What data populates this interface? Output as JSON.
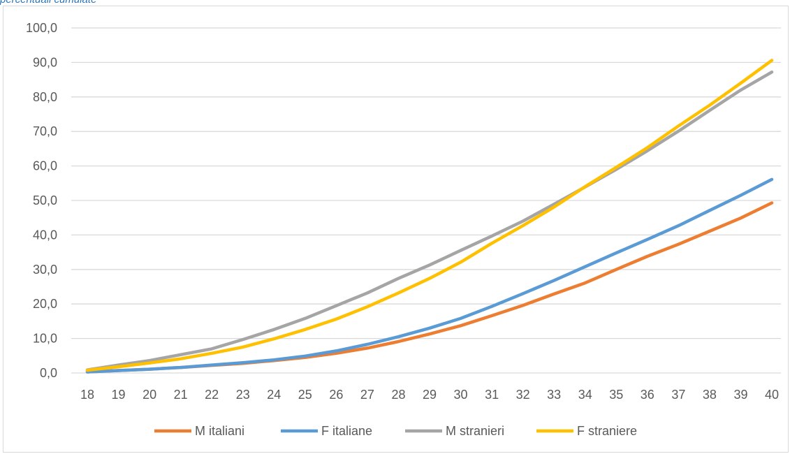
{
  "caption": "percentuali cumulate",
  "chart_data": {
    "type": "line",
    "title": "",
    "xlabel": "",
    "ylabel": "",
    "categories": [
      "18",
      "19",
      "20",
      "21",
      "22",
      "23",
      "24",
      "25",
      "26",
      "27",
      "28",
      "29",
      "30",
      "31",
      "32",
      "33",
      "34",
      "35",
      "36",
      "37",
      "38",
      "39",
      "40"
    ],
    "ylim": [
      0,
      100
    ],
    "yticks": [
      "0,0",
      "10,0",
      "20,0",
      "30,0",
      "40,0",
      "50,0",
      "60,0",
      "70,0",
      "80,0",
      "90,0",
      "100,0"
    ],
    "grid": true,
    "legend_position": "bottom",
    "series": [
      {
        "name": "M italiani",
        "color": "#ed7d31",
        "values": [
          0.3,
          0.7,
          1.1,
          1.6,
          2.2,
          2.8,
          3.6,
          4.5,
          5.7,
          7.2,
          9.1,
          11.3,
          13.7,
          16.6,
          19.6,
          22.9,
          26.1,
          30.0,
          33.8,
          37.3,
          41.1,
          44.9,
          49.3
        ]
      },
      {
        "name": "F italiane",
        "color": "#5b9bd5",
        "values": [
          0.3,
          0.7,
          1.1,
          1.6,
          2.3,
          3.0,
          3.8,
          4.9,
          6.4,
          8.3,
          10.5,
          13.0,
          15.8,
          19.3,
          23.0,
          26.8,
          30.8,
          34.8,
          38.7,
          42.7,
          47.1,
          51.5,
          56.1
        ]
      },
      {
        "name": "M stranieri",
        "color": "#a5a5a5",
        "values": [
          0.9,
          2.3,
          3.6,
          5.3,
          7.0,
          9.7,
          12.6,
          15.8,
          19.5,
          23.2,
          27.4,
          31.3,
          35.5,
          39.7,
          44.0,
          48.9,
          53.9,
          59.0,
          64.4,
          70.1,
          76.1,
          82.0,
          87.2
        ]
      },
      {
        "name": "F straniere",
        "color": "#ffc000",
        "values": [
          0.8,
          1.8,
          2.9,
          4.1,
          5.7,
          7.5,
          9.9,
          12.6,
          15.6,
          19.2,
          23.2,
          27.4,
          32.1,
          37.6,
          42.7,
          48.1,
          54.0,
          59.6,
          65.3,
          71.6,
          77.6,
          84.0,
          90.6
        ]
      }
    ]
  }
}
